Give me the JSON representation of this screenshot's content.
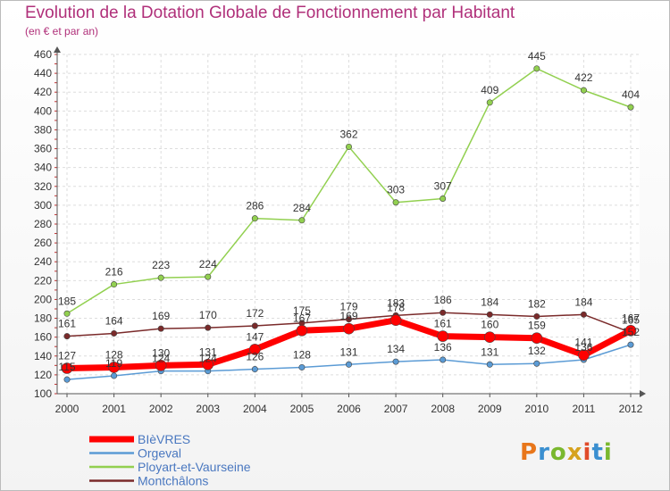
{
  "header": {
    "title": "Evolution de la Dotation Globale de Fonctionnement par Habitant",
    "subtitle": "(en € et par an)"
  },
  "logo": {
    "text": "Proxiti",
    "colors": [
      "#e8761a",
      "#3a8fd0",
      "#7ab82e",
      "#d6a21e",
      "#e04b2a",
      "#3a8fd0",
      "#7ab82e"
    ]
  },
  "chart_data": {
    "type": "line",
    "x": [
      "2000",
      "2001",
      "2002",
      "2003",
      "2004",
      "2005",
      "2006",
      "2007",
      "2008",
      "2009",
      "2010",
      "2011",
      "2012"
    ],
    "ylim": [
      100,
      460
    ],
    "yticks": [
      100,
      120,
      140,
      160,
      180,
      200,
      220,
      240,
      260,
      280,
      300,
      320,
      340,
      360,
      380,
      400,
      420,
      440,
      460
    ],
    "grid": true,
    "legend_position": "bottom-left",
    "series": [
      {
        "name": "Orgeval",
        "color": "#5b9bd5",
        "width": 1.5,
        "values": [
          115,
          119,
          124,
          124,
          126,
          128,
          131,
          134,
          136,
          131,
          132,
          136,
          152
        ],
        "labels": [
          "115",
          "119",
          "124",
          "124",
          "126",
          "128",
          "131",
          "134",
          "136",
          "131",
          "132",
          "136",
          "152"
        ]
      },
      {
        "name": "Ployart-et-Vaurseine",
        "color": "#92d050",
        "width": 1.5,
        "values": [
          185,
          216,
          223,
          224,
          286,
          284,
          362,
          303,
          307,
          409,
          445,
          422,
          404
        ],
        "labels": [
          "185",
          "216",
          "223",
          "224",
          "286",
          "284",
          "362",
          "303",
          "307",
          "409",
          "445",
          "422",
          "404"
        ]
      },
      {
        "name": "Montchâlons",
        "color": "#7a2a2a",
        "width": 1.5,
        "values": [
          161,
          164,
          169,
          170,
          172,
          175,
          179,
          183,
          186,
          184,
          182,
          184,
          165
        ],
        "labels": [
          "161",
          "164",
          "169",
          "170",
          "172",
          "175",
          "179",
          "183",
          "186",
          "184",
          "182",
          "184",
          "165"
        ]
      },
      {
        "name": "BIèVRES",
        "color": "#ff0000",
        "width": 7,
        "values": [
          127,
          128,
          130,
          131,
          147,
          167,
          169,
          178,
          161,
          160,
          159,
          141,
          167
        ],
        "labels": [
          "127",
          "128",
          "130",
          "131",
          "147",
          "167",
          "169",
          "178",
          "161",
          "160",
          "159",
          "141",
          "167"
        ]
      }
    ],
    "legend_order": [
      "BIèVRES",
      "Orgeval",
      "Ployart-et-Vaurseine",
      "Montchâlons"
    ]
  }
}
